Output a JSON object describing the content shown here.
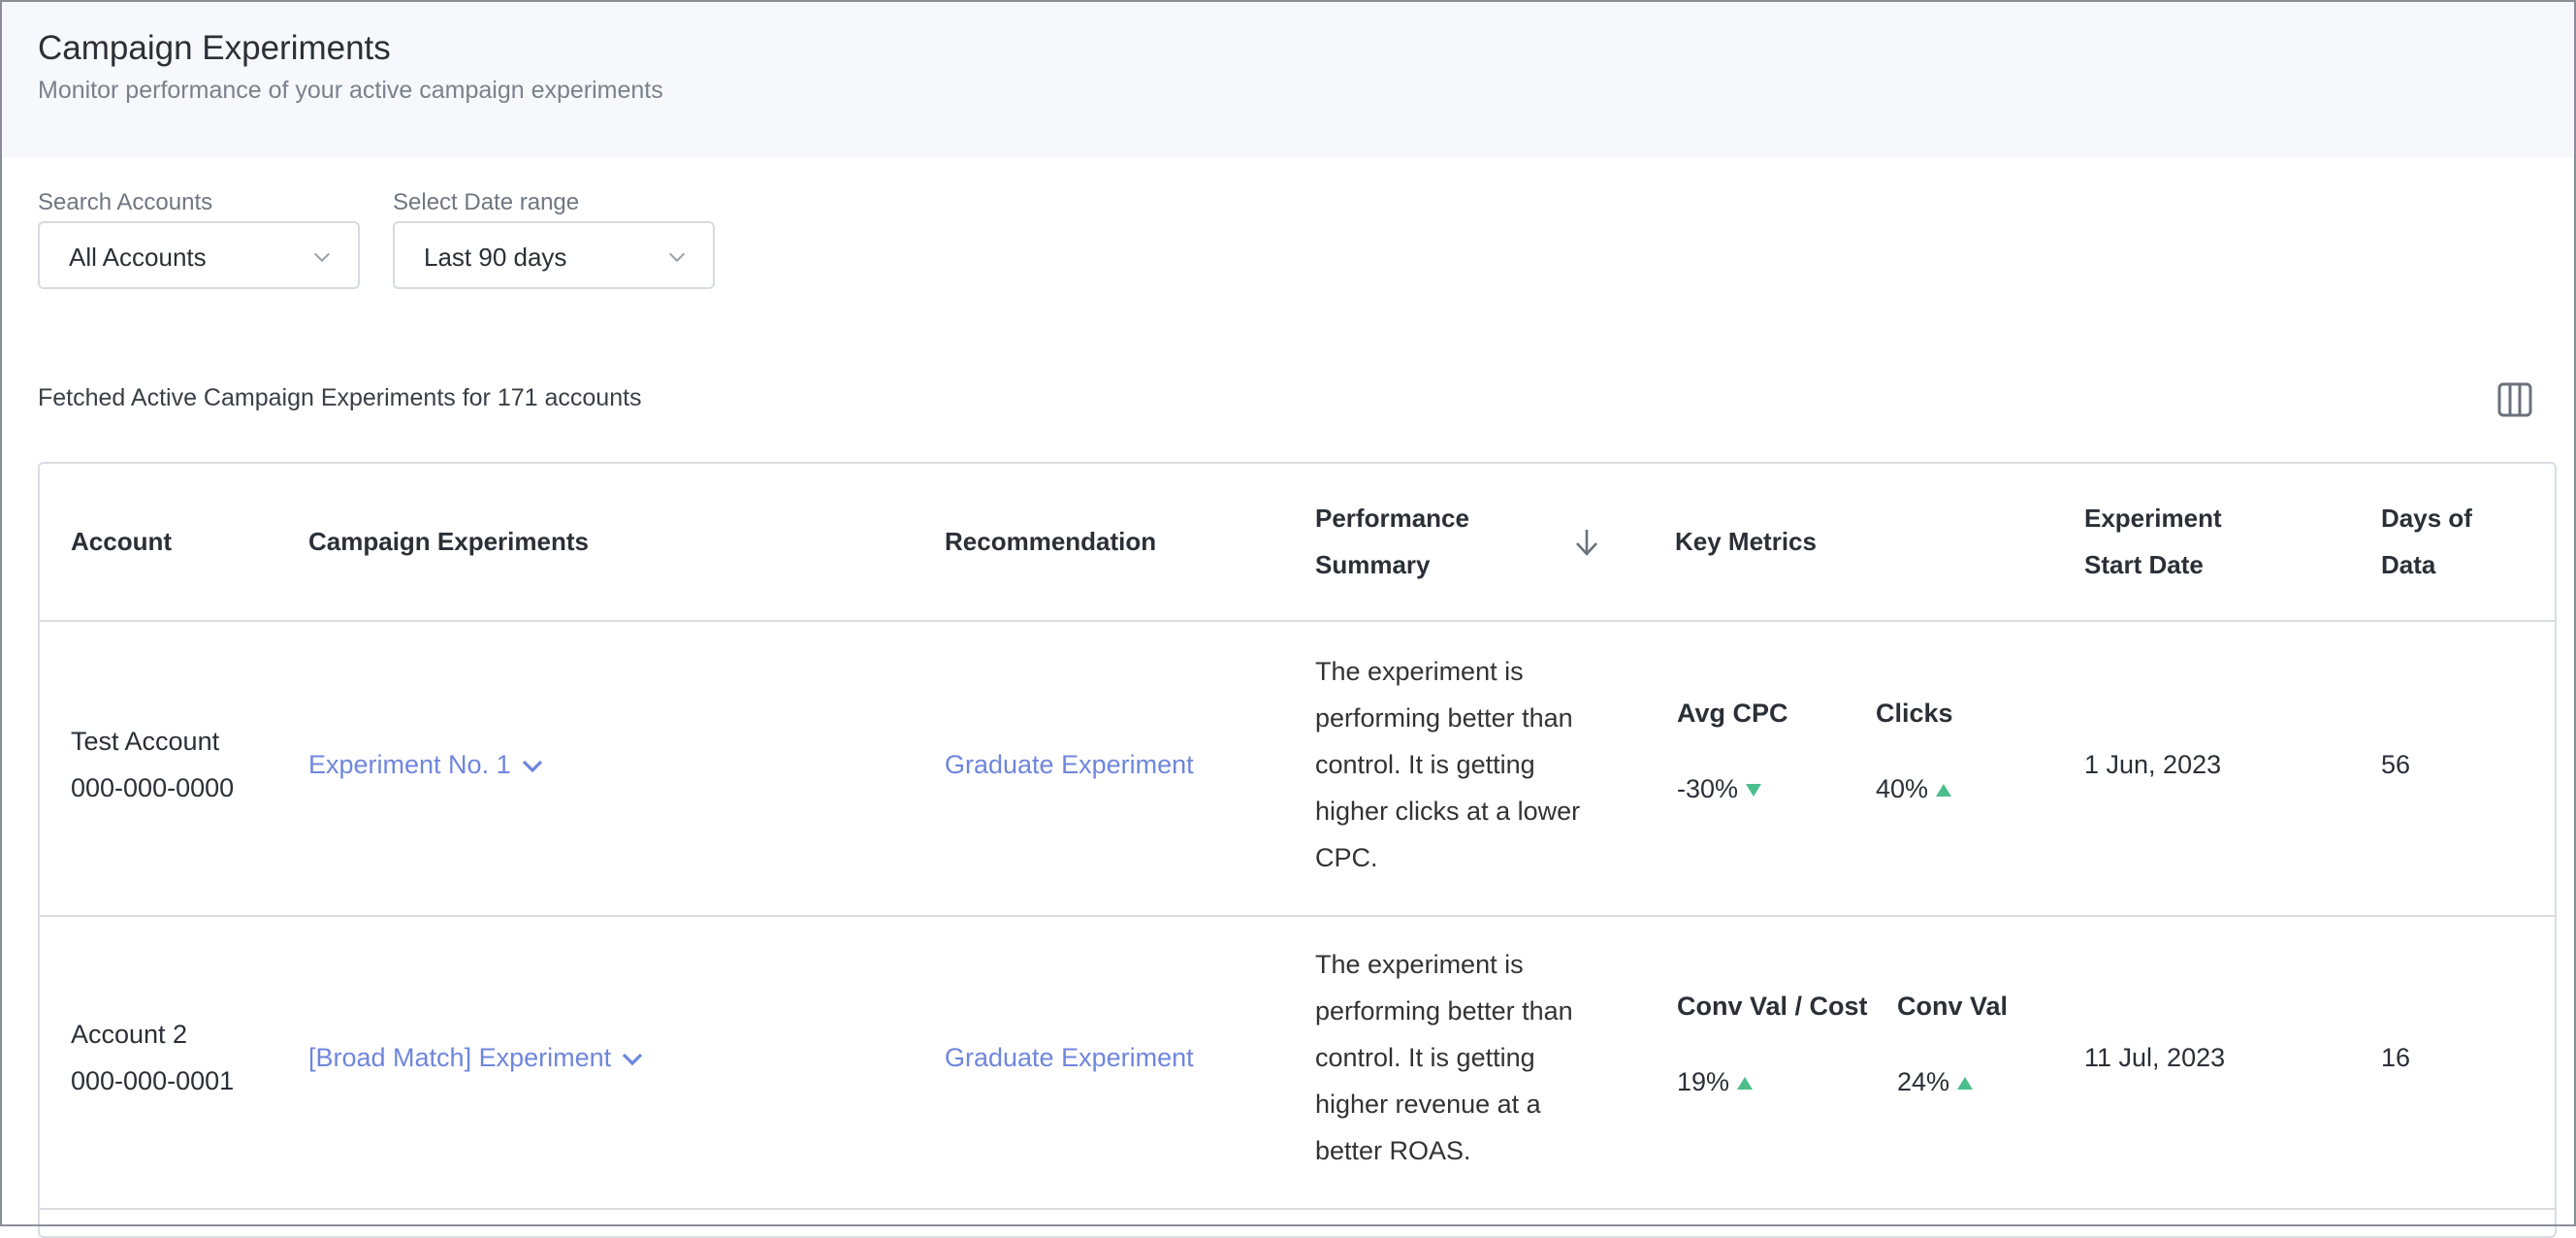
{
  "header": {
    "title": "Campaign Experiments",
    "subtitle": "Monitor performance of your active campaign experiments"
  },
  "filters": {
    "accounts_label": "Search Accounts",
    "accounts_value": "All Accounts",
    "date_label": "Select Date range",
    "date_value": "Last 90 days"
  },
  "summary": "Fetched Active Campaign Experiments for 171 accounts",
  "table": {
    "headers": {
      "account": "Account",
      "campaign_experiments": "Campaign Experiments",
      "recommendation": "Recommendation",
      "performance_summary_1": "Performance",
      "performance_summary_2": "Summary",
      "key_metrics": "Key Metrics",
      "start_date_1": "Experiment",
      "start_date_2": "Start Date",
      "days_1": "Days of",
      "days_2": "Data"
    },
    "rows": [
      {
        "account_name": "Test Account",
        "account_id": "000-000-0000",
        "experiment": "Experiment No. 1",
        "recommendation": "Graduate Experiment",
        "perf_lines": [
          "The experiment is",
          "performing better than",
          "control. It is getting",
          "higher clicks at a lower",
          "CPC."
        ],
        "metrics": [
          {
            "label": "Avg CPC",
            "value": "-30%",
            "trend": "down"
          },
          {
            "label": "Clicks",
            "value": "40%",
            "trend": "up"
          }
        ],
        "start_date": "1 Jun, 2023",
        "days": "56"
      },
      {
        "account_name": "Account 2",
        "account_id": "000-000-0001",
        "experiment": "[Broad Match] Experiment",
        "recommendation": "Graduate Experiment",
        "perf_lines": [
          "The experiment is",
          "performing better than",
          "control. It is getting",
          "higher revenue at a",
          "better ROAS."
        ],
        "metrics": [
          {
            "label": "Conv Val / Cost",
            "value": "19%",
            "trend": "up"
          },
          {
            "label": "Conv Val",
            "value": "24%",
            "trend": "up"
          }
        ],
        "start_date": "11 Jul, 2023",
        "days": "16"
      }
    ]
  },
  "colors": {
    "link": "#6f86dc",
    "trend_green": "#4cbe8c",
    "header_bg": "#f6f8fb"
  },
  "icons": [
    "chevron-down-icon",
    "columns-icon",
    "sort-arrow-down-icon",
    "triangle-down-icon",
    "triangle-up-icon"
  ]
}
